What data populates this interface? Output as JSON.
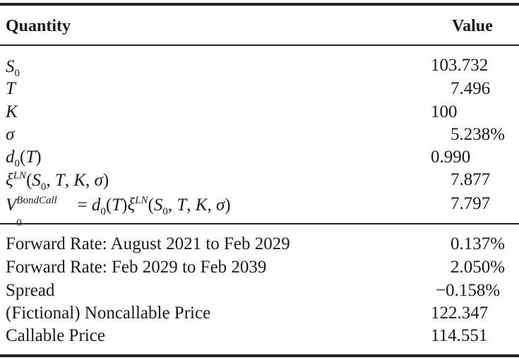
{
  "header": {
    "quantity_label": "Quantity",
    "value_label": "Value"
  },
  "top_rows": [
    {
      "symbol": "S",
      "sub": "0",
      "value": "103.732"
    },
    {
      "symbol": "T",
      "value": "7.496"
    },
    {
      "symbol": "K",
      "value": "100"
    },
    {
      "symbol": "σ",
      "value": "5.238%"
    },
    {
      "symbol": "d",
      "sub": "0",
      "arg": "(T)",
      "value": "0.990"
    },
    {
      "symbol": "ξ",
      "sup": "LN",
      "arg": "(S0, T, K, σ)",
      "value": "7.877"
    },
    {
      "symbol": "V",
      "sub": "0",
      "sup": "BondCall",
      "expr": "= d0(T)ξLN(S0, T, K, σ)",
      "value": "7.797"
    }
  ],
  "bottom_rows": [
    {
      "label": "Forward Rate: August 2021 to Feb 2029",
      "value": "0.137%"
    },
    {
      "label": "Forward Rate: Feb 2029 to Feb 2039",
      "value": "2.050%"
    },
    {
      "label": "Spread",
      "value": "−0.158%"
    },
    {
      "label": "(Fictional) Noncallable Price",
      "value": "122.347"
    },
    {
      "label": "Callable Price",
      "value": "114.551"
    }
  ]
}
